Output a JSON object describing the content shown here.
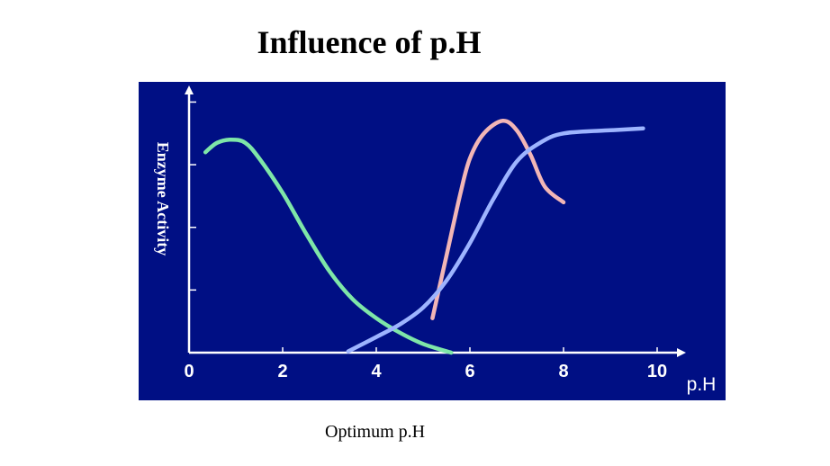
{
  "title": "Influence of p.H",
  "caption": "Optimum p.H",
  "chart_data": {
    "type": "line",
    "ylabel": "Enzyme Activity",
    "xlabel": "p.H",
    "xlim": [
      0,
      10.5
    ],
    "ylim": [
      0,
      4.15
    ],
    "x_ticks": [
      0,
      2,
      4,
      6,
      8,
      10
    ],
    "x_tick_labels": [
      "0",
      "2",
      "4",
      "6",
      "8",
      "10"
    ],
    "y_ticks": [
      1,
      2,
      3,
      4
    ],
    "grid": false,
    "legend": "none",
    "background_color": "#000f84",
    "axis_color": "#ffffff",
    "series": [
      {
        "color": "#7ee6a8",
        "x": [
          0.35,
          0.6,
          0.9,
          1.2,
          1.5,
          2.0,
          2.5,
          3.0,
          3.5,
          4.0,
          4.5,
          5.0,
          5.6
        ],
        "y": [
          3.2,
          3.35,
          3.4,
          3.35,
          3.1,
          2.55,
          1.9,
          1.3,
          0.85,
          0.55,
          0.32,
          0.14,
          0.0
        ]
      },
      {
        "color": "#f2b6b6",
        "x": [
          5.2,
          5.5,
          5.8,
          6.0,
          6.3,
          6.7,
          7.0,
          7.3,
          7.6,
          8.0
        ],
        "y": [
          0.55,
          1.55,
          2.55,
          3.1,
          3.5,
          3.7,
          3.55,
          3.15,
          2.65,
          2.4
        ]
      },
      {
        "color": "#9db4ff",
        "x": [
          3.4,
          4.0,
          4.5,
          5.0,
          5.5,
          6.0,
          6.5,
          7.0,
          7.5,
          8.0,
          9.0,
          9.7
        ],
        "y": [
          0.02,
          0.25,
          0.45,
          0.72,
          1.15,
          1.75,
          2.45,
          3.05,
          3.35,
          3.5,
          3.55,
          3.58
        ]
      }
    ]
  }
}
